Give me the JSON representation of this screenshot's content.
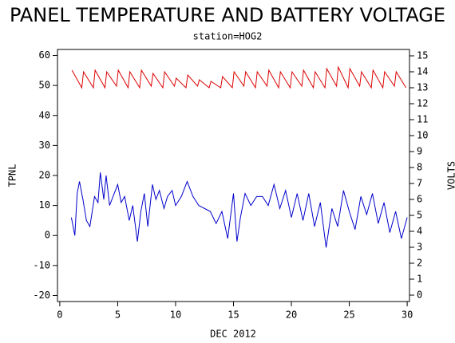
{
  "chart_data": {
    "type": "line",
    "title": "PANEL TEMPERATURE AND BATTERY VOLTAGE",
    "subtitle": "station=HOG2",
    "x_label": "DEC 2012",
    "y_label": "TPNL",
    "y2_label": "VOLTS",
    "xlim": [
      -0.2,
      30.2
    ],
    "xticks": [
      0,
      5,
      10,
      15,
      20,
      25,
      30
    ],
    "ylim": [
      -22,
      62
    ],
    "yticks": [
      -20,
      -10,
      0,
      10,
      20,
      30,
      40,
      50,
      60
    ],
    "y2lim": [
      -0.4,
      15.4
    ],
    "y2ticks": [
      0,
      1,
      2,
      3,
      4,
      5,
      6,
      7,
      8,
      9,
      10,
      11,
      12,
      13,
      14,
      15
    ],
    "series": [
      {
        "name": "TPNL",
        "color": "#0000cc",
        "x": [
          1,
          1.3,
          1.5,
          1.7,
          2,
          2.3,
          2.6,
          3,
          3.3,
          3.5,
          3.8,
          4,
          4.3,
          4.6,
          5,
          5.3,
          5.6,
          6,
          6.3,
          6.7,
          7,
          7.3,
          7.6,
          8,
          8.3,
          8.6,
          9,
          9.3,
          9.7,
          10,
          10.5,
          11,
          11.5,
          12,
          12.5,
          13,
          13.5,
          14,
          14.5,
          15,
          15.3,
          15.6,
          16,
          16.5,
          17,
          17.5,
          18,
          18.5,
          19,
          19.5,
          20,
          20.5,
          21,
          21.5,
          22,
          22.5,
          23,
          23.5,
          24,
          24.5,
          25,
          25.5,
          26,
          26.5,
          27,
          27.5,
          28,
          28.5,
          29,
          29.5,
          30
        ],
        "values": [
          6,
          0,
          14,
          18,
          12,
          5,
          3,
          13,
          11,
          21,
          12,
          20,
          10,
          13,
          17,
          11,
          13,
          5,
          10,
          -2,
          8,
          14,
          3,
          17,
          12,
          15,
          9,
          13,
          15,
          10,
          13,
          18,
          13,
          10,
          9,
          8,
          4,
          8,
          -1,
          14,
          -2,
          6,
          14,
          10,
          13,
          13,
          10,
          17,
          9,
          15,
          6,
          14,
          5,
          14,
          3,
          11,
          -4,
          9,
          3,
          15,
          8,
          2,
          13,
          7,
          14,
          4,
          11,
          1,
          8,
          -1,
          6
        ]
      },
      {
        "name": "VOLTS",
        "color": "#dd0000",
        "axis": "y2",
        "x": [
          1.05,
          1.9,
          2.05,
          2.9,
          3.05,
          3.9,
          4.05,
          4.9,
          5.05,
          5.9,
          6.05,
          6.9,
          7.05,
          7.9,
          8.05,
          8.9,
          9.05,
          9.9,
          10.05,
          10.9,
          11.05,
          11.9,
          12.05,
          12.9,
          13.05,
          13.9,
          14.05,
          14.9,
          15.05,
          15.9,
          16.05,
          16.9,
          17.05,
          17.9,
          18.05,
          18.9,
          19.05,
          19.9,
          20.05,
          20.9,
          21.05,
          21.9,
          22.05,
          22.9,
          23.05,
          23.9,
          24.05,
          24.9,
          25.05,
          25.9,
          26.05,
          26.9,
          27.05,
          27.9,
          28.05,
          28.9,
          29.05,
          29.9
        ],
        "values": [
          14.1,
          13.0,
          14.0,
          13.0,
          14.1,
          13.0,
          14.0,
          13.1,
          14.1,
          13.0,
          14.0,
          13.0,
          14.1,
          13.1,
          13.9,
          13.0,
          14.0,
          13.1,
          13.6,
          13.0,
          13.8,
          13.1,
          13.5,
          13.0,
          13.4,
          13.0,
          13.7,
          13.0,
          14.0,
          13.1,
          14.0,
          13.0,
          14.0,
          13.1,
          14.1,
          13.0,
          14.0,
          13.0,
          14.0,
          13.1,
          14.1,
          13.0,
          14.0,
          13.0,
          14.2,
          13.1,
          14.3,
          13.0,
          14.2,
          13.1,
          14.0,
          13.0,
          14.1,
          13.0,
          14.0,
          13.1,
          14.0,
          13.0
        ]
      }
    ]
  }
}
